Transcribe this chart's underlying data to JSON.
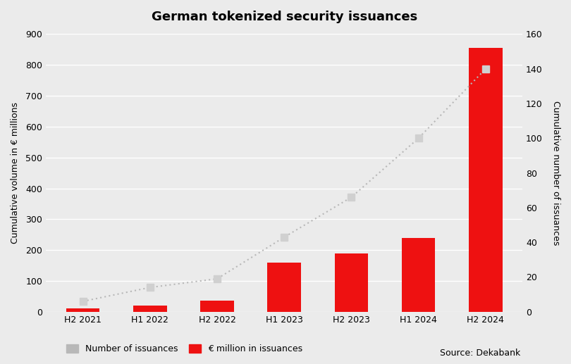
{
  "title": "German tokenized security issuances",
  "categories": [
    "H2 2021",
    "H1 2022",
    "H2 2022",
    "H1 2023",
    "H2 2023",
    "H1 2024",
    "H2 2024"
  ],
  "bar_values": [
    10,
    20,
    35,
    160,
    190,
    238,
    855
  ],
  "line_values": [
    6,
    14,
    19,
    43,
    66,
    100,
    140
  ],
  "bar_color": "#ee1111",
  "line_color": "#b8b8b8",
  "line_marker_color": "#d0d0d0",
  "bar_width": 0.5,
  "left_ylabel": "Cumulative volume in € millions",
  "right_ylabel": "Cumulative number of issuances",
  "left_ylim": [
    0,
    900
  ],
  "right_ylim": [
    0,
    160
  ],
  "left_yticks": [
    0,
    100,
    200,
    300,
    400,
    500,
    600,
    700,
    800,
    900
  ],
  "right_yticks": [
    0,
    20,
    40,
    60,
    80,
    100,
    120,
    140,
    160
  ],
  "background_color": "#ebebeb",
  "plot_background_color": "#ebebeb",
  "grid_color": "#ffffff",
  "legend_label_line": "Number of issuances",
  "legend_label_bar": "€ million in issuances",
  "source_text": "Source: Dekabank",
  "title_fontsize": 13,
  "axis_fontsize": 9,
  "tick_fontsize": 9
}
